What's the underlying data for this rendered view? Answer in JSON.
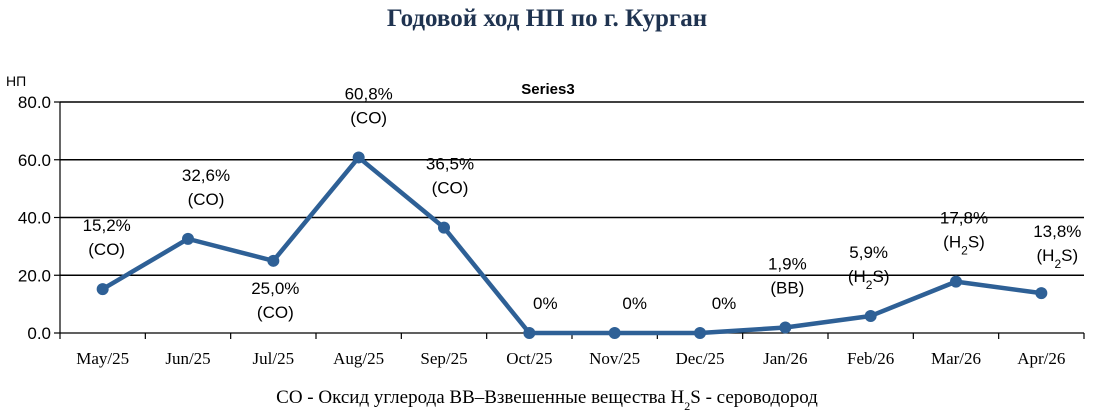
{
  "chart_data": {
    "type": "line",
    "title": "Годовой ход НП по г. Курган",
    "ylabel": "НП",
    "xlabel": "",
    "ylim": [
      0,
      80
    ],
    "yticks": [
      "0.0",
      "20.0",
      "40.0",
      "60.0",
      "80.0"
    ],
    "ytick_values": [
      0,
      20,
      40,
      60,
      80
    ],
    "grid": true,
    "legend": "none",
    "categories": [
      "May/25",
      "Jun/25",
      "Jul/25",
      "Aug/25",
      "Sep/25",
      "Oct/25",
      "Nov/25",
      "Dec/25",
      "Jan/26",
      "Feb/26",
      "Mar/26",
      "Apr/26"
    ],
    "series": [
      {
        "name": "Series3",
        "color": "#2e6096",
        "values": [
          15.2,
          32.6,
          25.0,
          60.8,
          36.5,
          0,
          0,
          0,
          1.9,
          5.9,
          17.8,
          13.8
        ],
        "labels": [
          {
            "value": "15,2%",
            "substance": "(CO)"
          },
          {
            "value": "32,6%",
            "substance": "(CO)"
          },
          {
            "value": "25,0%",
            "substance": "(CO)"
          },
          {
            "value": "60,8%",
            "substance": "(CO)"
          },
          {
            "value": "36,5%",
            "substance": "(CO)"
          },
          {
            "value": "0%",
            "substance": ""
          },
          {
            "value": "0%",
            "substance": ""
          },
          {
            "value": "0%",
            "substance": ""
          },
          {
            "value": "1,9%",
            "substance": "(BB)"
          },
          {
            "value": "5,9%",
            "substance": "(H2S)"
          },
          {
            "value": "17,8%",
            "substance": "(H2S)"
          },
          {
            "value": "13,8%",
            "substance": "(H2S)"
          }
        ]
      }
    ],
    "footnote": "CO - Оксид углерода  ВВ–Взвешенные вещества H2S - сероводород"
  }
}
